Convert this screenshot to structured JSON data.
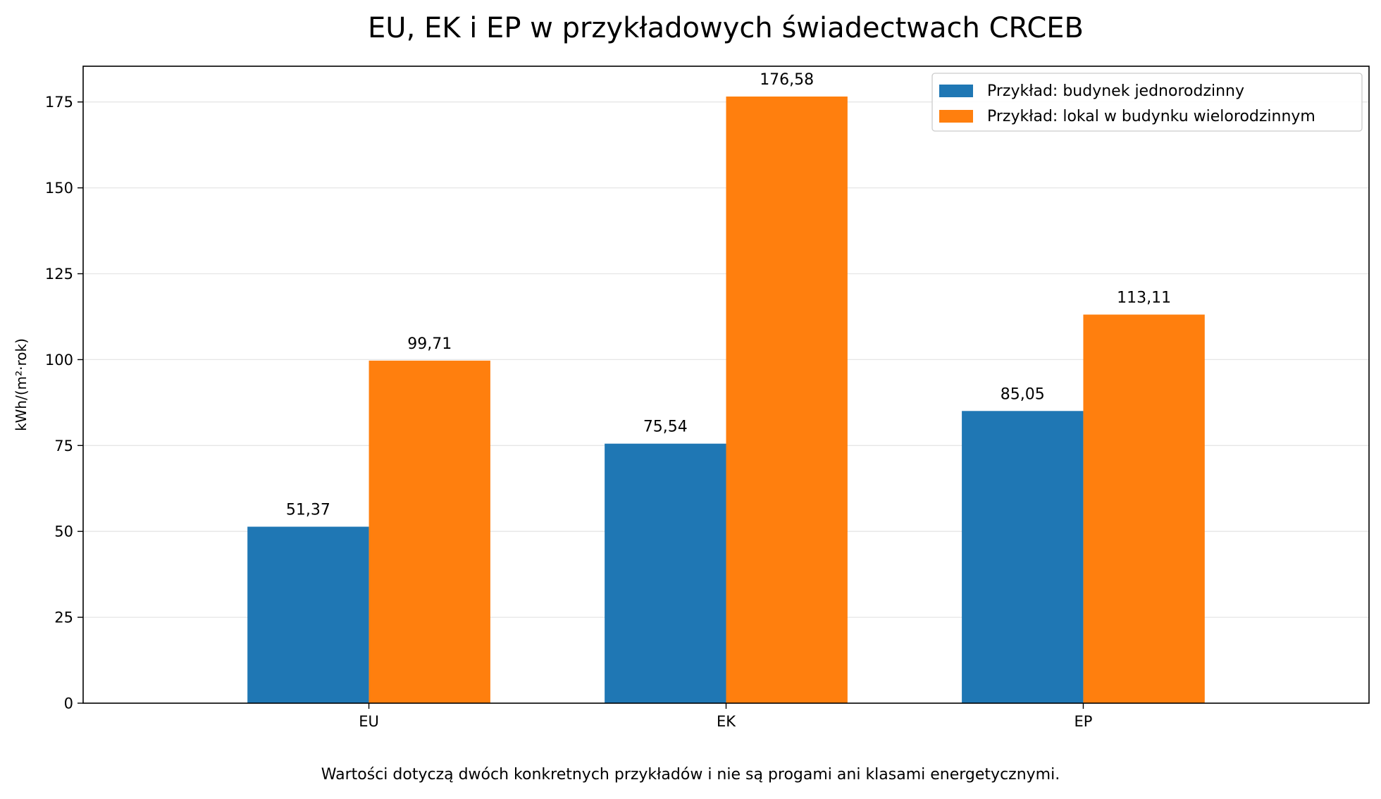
{
  "chart_data": {
    "type": "bar",
    "title": "EU, EK i EP w przykładowych świadectwach CRCEB",
    "xlabel": "",
    "ylabel": "kWh/(m²·rok)",
    "categories": [
      "EU",
      "EK",
      "EP"
    ],
    "series": [
      {
        "name": "Przykład: budynek jednorodzinny",
        "values": [
          51.37,
          75.54,
          85.05
        ],
        "labels": [
          "51,37",
          "75,54",
          "85,05"
        ],
        "color": "#1f77b4"
      },
      {
        "name": "Przykład: lokal w budynku wielorodzinnym",
        "values": [
          99.71,
          176.58,
          113.11
        ],
        "labels": [
          "99,71",
          "176,58",
          "113,11"
        ],
        "color": "#ff7f0e"
      }
    ],
    "ylim": [
      0,
      185.4
    ],
    "yticks": [
      0,
      25,
      50,
      75,
      100,
      125,
      150,
      175
    ],
    "grid": "horizontal",
    "legend": "top-right",
    "footnote": "Wartości dotyczą dwóch konkretnych przykładów i nie są progami ani klasami energetycznymi."
  }
}
